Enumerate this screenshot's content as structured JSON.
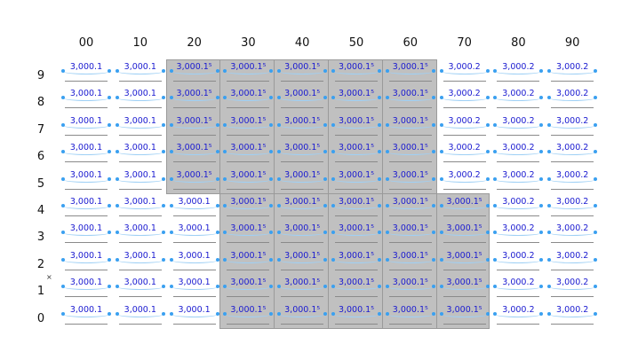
{
  "columns": [
    "00",
    "10",
    "20",
    "30",
    "40",
    "50",
    "60",
    "70",
    "80",
    "90"
  ],
  "rows": [
    "9",
    "8",
    "7",
    "6",
    "5",
    "4",
    "3",
    "2",
    "1",
    "0"
  ],
  "corner_mark": "×",
  "colors": {
    "value_text": "#1a1ad0",
    "handle_dot": "#3aa0f0",
    "shade": "#c0c0c0"
  },
  "grid": [
    [
      "3,000.1",
      "3,000.1",
      "3,000.1⁵",
      "3,000.1⁵",
      "3,000.1⁵",
      "3,000.1⁵",
      "3,000.1⁵",
      "3,000.2",
      "3,000.2",
      "3,000.2"
    ],
    [
      "3,000.1",
      "3,000.1",
      "3,000.1⁵",
      "3,000.1⁵",
      "3,000.1⁵",
      "3,000.1⁵",
      "3,000.1⁵",
      "3,000.2",
      "3,000.2",
      "3,000.2"
    ],
    [
      "3,000.1",
      "3,000.1",
      "3,000.1⁵",
      "3,000.1⁵",
      "3,000.1⁵",
      "3,000.1⁵",
      "3,000.1⁵",
      "3,000.2",
      "3,000.2",
      "3,000.2"
    ],
    [
      "3,000.1",
      "3,000.1",
      "3,000.1⁵",
      "3,000.1⁵",
      "3,000.1⁵",
      "3,000.1⁵",
      "3,000.1⁵",
      "3,000.2",
      "3,000.2",
      "3,000.2"
    ],
    [
      "3,000.1",
      "3,000.1",
      "3,000.1⁵",
      "3,000.1⁵",
      "3,000.1⁵",
      "3,000.1⁵",
      "3,000.1⁵",
      "3,000.2",
      "3,000.2",
      "3,000.2"
    ],
    [
      "3,000.1",
      "3,000.1",
      "3,000.1",
      "3,000.1⁵",
      "3,000.1⁵",
      "3,000.1⁵",
      "3,000.1⁵",
      "3,000.1⁵",
      "3,000.2",
      "3,000.2"
    ],
    [
      "3,000.1",
      "3,000.1",
      "3,000.1",
      "3,000.1⁵",
      "3,000.1⁵",
      "3,000.1⁵",
      "3,000.1⁵",
      "3,000.1⁵",
      "3,000.2",
      "3,000.2"
    ],
    [
      "3,000.1",
      "3,000.1",
      "3,000.1",
      "3,000.1⁵",
      "3,000.1⁵",
      "3,000.1⁵",
      "3,000.1⁵",
      "3,000.1⁵",
      "3,000.2",
      "3,000.2"
    ],
    [
      "3,000.1",
      "3,000.1",
      "3,000.1",
      "3,000.1⁵",
      "3,000.1⁵",
      "3,000.1⁵",
      "3,000.1⁵",
      "3,000.1⁵",
      "3,000.2",
      "3,000.2"
    ],
    [
      "3,000.1",
      "3,000.1",
      "3,000.1",
      "3,000.1⁵",
      "3,000.1⁵",
      "3,000.1⁵",
      "3,000.1⁵",
      "3,000.1⁵",
      "3,000.2",
      "3,000.2"
    ]
  ]
}
